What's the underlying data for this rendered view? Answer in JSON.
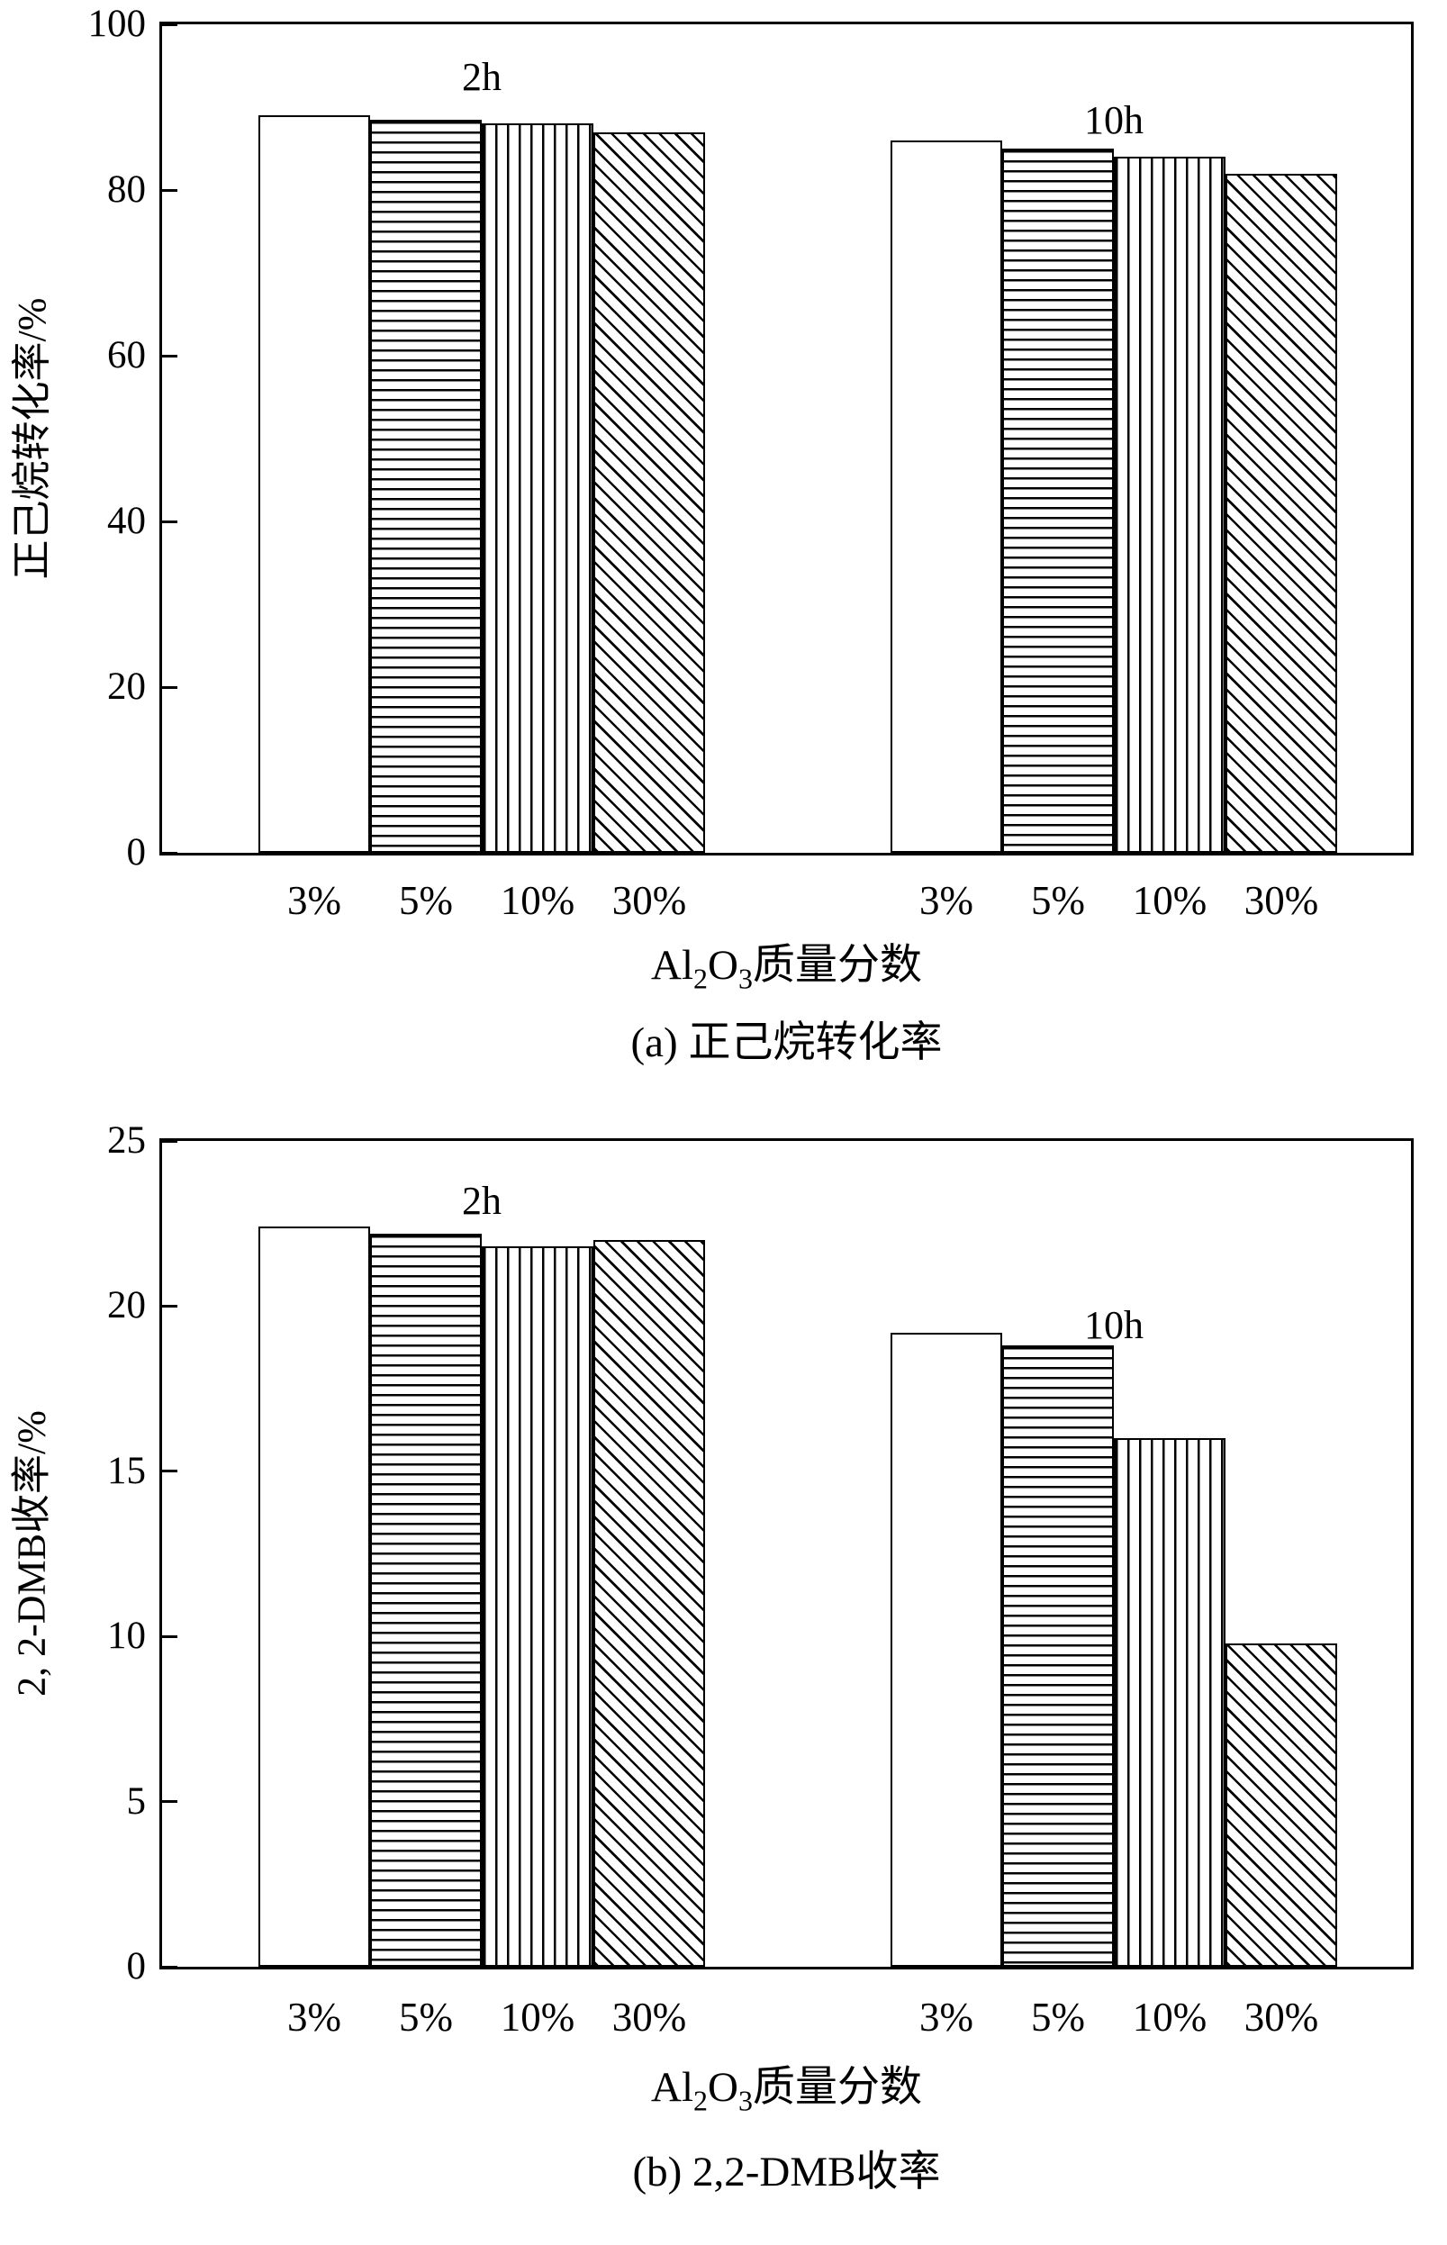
{
  "figure": {
    "background": "#ffffff",
    "line_color": "#000000",
    "bar_fill": "#ffffff"
  },
  "chart_data": [
    {
      "type": "bar",
      "title": "",
      "ylabel": "正己烷转化率/%",
      "xlabel": "Al2O3质量分数",
      "xlabel_parts": {
        "t1": "Al",
        "s1": "2",
        "t2": "O",
        "s2": "3",
        "t3": "质量分数"
      },
      "caption": "(a) 正己烷转化率",
      "ylim": [
        0,
        100
      ],
      "yticks": [
        0,
        20,
        40,
        60,
        80,
        100
      ],
      "grid": false,
      "legend": "none",
      "categories": [
        "3%",
        "5%",
        "10%",
        "30%"
      ],
      "patterns": [
        "plain",
        "hlines",
        "vlines",
        "diag"
      ],
      "groups": [
        {
          "label": "2h",
          "values": [
            89,
            88.5,
            88,
            87
          ]
        },
        {
          "label": "10h",
          "values": [
            86,
            85,
            84,
            82
          ]
        }
      ]
    },
    {
      "type": "bar",
      "title": "",
      "ylabel": "2, 2-DMB收率/%",
      "xlabel": "Al2O3质量分数",
      "xlabel_parts": {
        "t1": "Al",
        "s1": "2",
        "t2": "O",
        "s2": "3",
        "t3": "质量分数"
      },
      "caption": "(b) 2,2-DMB收率",
      "ylim": [
        0,
        25
      ],
      "yticks": [
        0,
        5,
        10,
        15,
        20,
        25
      ],
      "grid": false,
      "legend": "none",
      "categories": [
        "3%",
        "5%",
        "10%",
        "30%"
      ],
      "patterns": [
        "plain",
        "hlines",
        "vlines",
        "diag"
      ],
      "groups": [
        {
          "label": "2h",
          "values": [
            22.4,
            22.2,
            21.8,
            22.0
          ]
        },
        {
          "label": "10h",
          "values": [
            19.2,
            18.8,
            16.0,
            9.8
          ]
        }
      ]
    }
  ]
}
